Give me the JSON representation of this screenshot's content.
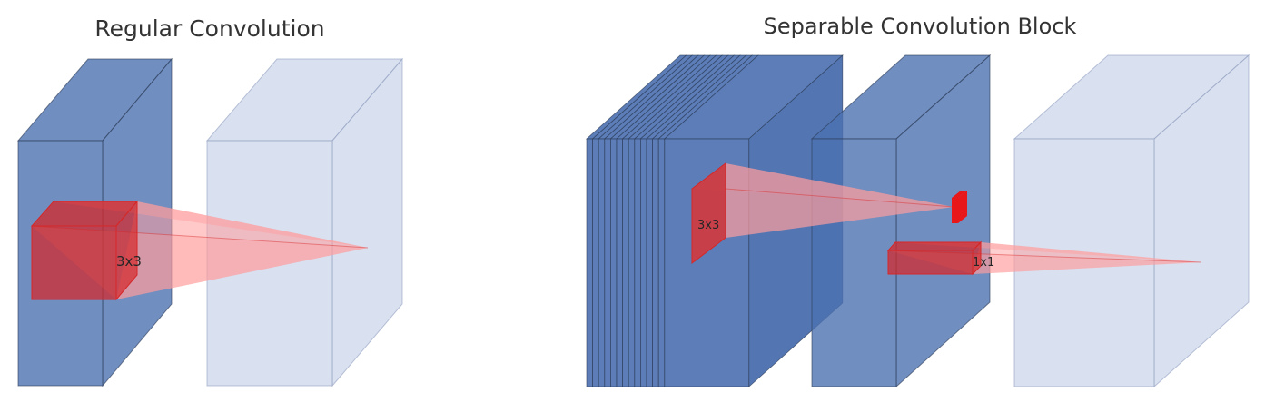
{
  "left_panel": {
    "title": "Regular Convolution",
    "kernel_label": "3x3"
  },
  "right_panel": {
    "title": "Separable Convolution Block",
    "depthwise_label": "3x3",
    "pointwise_label": "1x1",
    "stacked_slice_count": 14
  },
  "colors": {
    "block_fill": "#4c72b0",
    "block_fill_dark": "#4a6faf",
    "output_fill": "#c9d3e8",
    "kernel_fill": "#d62728",
    "kernel_bright": "#ee1111",
    "cone_fill": "#ff9d9d",
    "edge": "#2b3a55"
  }
}
